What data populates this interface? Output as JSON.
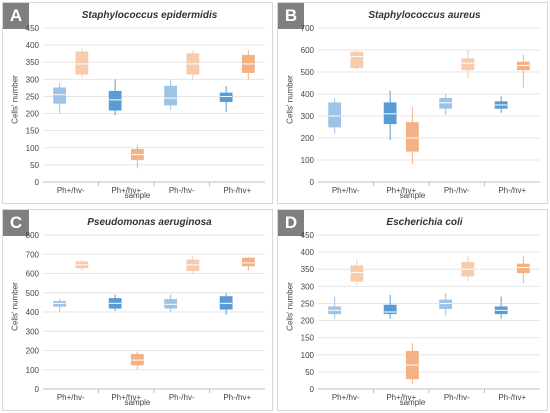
{
  "chart_data": [
    {
      "type": "box",
      "panel_label": "A",
      "title": "Staphylococcus epidermidis",
      "xlabel": "sample",
      "ylabel": "Cells' number",
      "ylim": [
        0,
        450
      ],
      "yticks": [
        0,
        50,
        100,
        150,
        200,
        250,
        300,
        350,
        400,
        450
      ],
      "categories": [
        "Ph+/hv-",
        "Ph+/hv+",
        "Ph-/hv-",
        "Ph-/hv+"
      ],
      "grid": true,
      "boxes": [
        {
          "category": "Ph+/hv-",
          "color": "#9dc3e6",
          "min": 200,
          "q1": 230,
          "median": 255,
          "q3": 275,
          "max": 290
        },
        {
          "category": "Ph+/hv-",
          "color": "#f8cbad",
          "min": 305,
          "q1": 315,
          "median": 345,
          "q3": 380,
          "max": 390
        },
        {
          "category": "Ph+/hv+",
          "color": "#5b9bd5",
          "min": 195,
          "q1": 210,
          "median": 240,
          "q3": 265,
          "max": 300
        },
        {
          "category": "Ph+/hv+",
          "color": "#f4b183",
          "min": 40,
          "q1": 65,
          "median": 80,
          "q3": 95,
          "max": 110
        },
        {
          "category": "Ph-/hv-",
          "color": "#9dc3e6",
          "min": 210,
          "q1": 225,
          "median": 245,
          "q3": 280,
          "max": 300
        },
        {
          "category": "Ph-/hv-",
          "color": "#f8cbad",
          "min": 300,
          "q1": 315,
          "median": 345,
          "q3": 375,
          "max": 385
        },
        {
          "category": "Ph-/hv+",
          "color": "#5b9bd5",
          "min": 205,
          "q1": 235,
          "median": 250,
          "q3": 260,
          "max": 280
        },
        {
          "category": "Ph-/hv+",
          "color": "#f4b183",
          "min": 300,
          "q1": 320,
          "median": 345,
          "q3": 370,
          "max": 385
        }
      ]
    },
    {
      "type": "box",
      "panel_label": "B",
      "title": "Staphylococcus aureus",
      "xlabel": "sample",
      "ylabel": "Cells' number",
      "ylim": [
        0,
        700
      ],
      "yticks": [
        0,
        100,
        200,
        300,
        400,
        500,
        600,
        700
      ],
      "categories": [
        "Ph+/hv-",
        "Ph+/hv+",
        "Ph-/hv-",
        "Ph-/hv+"
      ],
      "grid": true,
      "boxes": [
        {
          "category": "Ph+/hv-",
          "color": "#9dc3e6",
          "min": 220,
          "q1": 250,
          "median": 300,
          "q3": 360,
          "max": 380
        },
        {
          "category": "Ph+/hv-",
          "color": "#f8cbad",
          "min": 510,
          "q1": 520,
          "median": 570,
          "q3": 590,
          "max": 600
        },
        {
          "category": "Ph+/hv+",
          "color": "#5b9bd5",
          "min": 190,
          "q1": 265,
          "median": 310,
          "q3": 360,
          "max": 415
        },
        {
          "category": "Ph+/hv+",
          "color": "#f4b183",
          "min": 80,
          "q1": 140,
          "median": 200,
          "q3": 270,
          "max": 340
        },
        {
          "category": "Ph-/hv-",
          "color": "#9dc3e6",
          "min": 305,
          "q1": 335,
          "median": 360,
          "q3": 380,
          "max": 400
        },
        {
          "category": "Ph-/hv-",
          "color": "#f8cbad",
          "min": 470,
          "q1": 510,
          "median": 540,
          "q3": 560,
          "max": 600
        },
        {
          "category": "Ph-/hv+",
          "color": "#5b9bd5",
          "min": 315,
          "q1": 335,
          "median": 350,
          "q3": 365,
          "max": 390
        },
        {
          "category": "Ph-/hv+",
          "color": "#f4b183",
          "min": 430,
          "q1": 510,
          "median": 530,
          "q3": 545,
          "max": 580
        }
      ]
    },
    {
      "type": "box",
      "panel_label": "C",
      "title": "Pseudomonas aeruginosa",
      "xlabel": "sample",
      "ylabel": "Cells' number",
      "ylim": [
        0,
        800
      ],
      "yticks": [
        0,
        100,
        200,
        300,
        400,
        500,
        600,
        700,
        800
      ],
      "categories": [
        "Ph+/hv-",
        "Ph+/hv+",
        "Ph-/hv-",
        "Ph-/hv+"
      ],
      "grid": true,
      "boxes": [
        {
          "category": "Ph+/hv-",
          "color": "#9dc3e6",
          "min": 400,
          "q1": 430,
          "median": 445,
          "q3": 455,
          "max": 470
        },
        {
          "category": "Ph+/hv-",
          "color": "#f8cbad",
          "min": 615,
          "q1": 630,
          "median": 645,
          "q3": 660,
          "max": 670
        },
        {
          "category": "Ph+/hv+",
          "color": "#5b9bd5",
          "min": 405,
          "q1": 420,
          "median": 445,
          "q3": 470,
          "max": 490
        },
        {
          "category": "Ph+/hv+",
          "color": "#f4b183",
          "min": 100,
          "q1": 125,
          "median": 150,
          "q3": 180,
          "max": 195
        },
        {
          "category": "Ph-/hv-",
          "color": "#9dc3e6",
          "min": 400,
          "q1": 420,
          "median": 440,
          "q3": 465,
          "max": 490
        },
        {
          "category": "Ph-/hv-",
          "color": "#f8cbad",
          "min": 600,
          "q1": 615,
          "median": 645,
          "q3": 670,
          "max": 690
        },
        {
          "category": "Ph-/hv+",
          "color": "#5b9bd5",
          "min": 385,
          "q1": 415,
          "median": 445,
          "q3": 480,
          "max": 500
        },
        {
          "category": "Ph-/hv+",
          "color": "#f4b183",
          "min": 615,
          "q1": 640,
          "median": 655,
          "q3": 680,
          "max": 685
        }
      ]
    },
    {
      "type": "box",
      "panel_label": "D",
      "title": "Escherichia coli",
      "xlabel": "sample",
      "ylabel": "Cells' number",
      "ylim": [
        0,
        450
      ],
      "yticks": [
        0,
        50,
        100,
        150,
        200,
        250,
        300,
        350,
        400,
        450
      ],
      "categories": [
        "Ph+/hv-",
        "Ph+/hv+",
        "Ph-/hv-",
        "Ph-/hv+"
      ],
      "grid": true,
      "boxes": [
        {
          "category": "Ph+/hv-",
          "color": "#9dc3e6",
          "min": 205,
          "q1": 220,
          "median": 230,
          "q3": 240,
          "max": 270
        },
        {
          "category": "Ph+/hv-",
          "color": "#f8cbad",
          "min": 305,
          "q1": 315,
          "median": 340,
          "q3": 360,
          "max": 380
        },
        {
          "category": "Ph+/hv+",
          "color": "#5b9bd5",
          "min": 205,
          "q1": 220,
          "median": 225,
          "q3": 245,
          "max": 275
        },
        {
          "category": "Ph+/hv+",
          "color": "#f4b183",
          "min": 15,
          "q1": 30,
          "median": 70,
          "q3": 110,
          "max": 135
        },
        {
          "category": "Ph-/hv-",
          "color": "#9dc3e6",
          "min": 215,
          "q1": 235,
          "median": 250,
          "q3": 260,
          "max": 280
        },
        {
          "category": "Ph-/hv-",
          "color": "#f8cbad",
          "min": 315,
          "q1": 330,
          "median": 350,
          "q3": 370,
          "max": 390
        },
        {
          "category": "Ph-/hv+",
          "color": "#5b9bd5",
          "min": 205,
          "q1": 220,
          "median": 230,
          "q3": 240,
          "max": 270
        },
        {
          "category": "Ph-/hv+",
          "color": "#f4b183",
          "min": 310,
          "q1": 340,
          "median": 355,
          "q3": 365,
          "max": 390
        }
      ]
    }
  ]
}
